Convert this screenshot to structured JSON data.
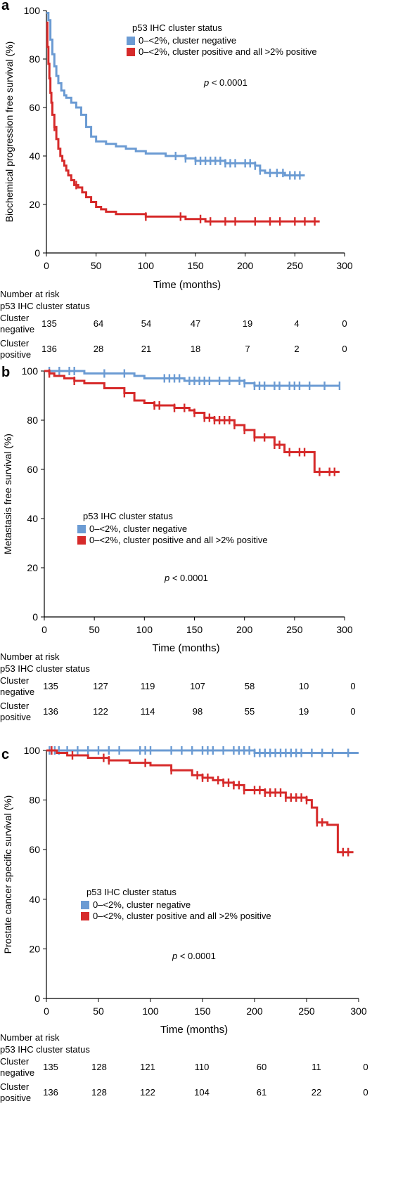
{
  "chart_data": [
    {
      "type": "line",
      "panel_label": "a",
      "ylabel": "Biochemical progression free survival (%)",
      "xlabel": "Time (months)",
      "xlim": [
        0,
        300
      ],
      "ylim": [
        0,
        100
      ],
      "x_ticks": [
        "0",
        "50",
        "100",
        "150",
        "200",
        "250",
        "300"
      ],
      "y_ticks": [
        "0",
        "20",
        "40",
        "60",
        "80",
        "100"
      ],
      "legend_title": "p53 IHC cluster status",
      "legend_placement": "top-right",
      "p_value_prefix": "p",
      "p_value_rest": " < 0.0001",
      "series": [
        {
          "name": "0–<2%, cluster negative",
          "color": "#6b9bd3",
          "x": [
            0,
            2,
            4,
            6,
            8,
            10,
            12,
            15,
            18,
            20,
            25,
            30,
            35,
            40,
            45,
            50,
            60,
            70,
            80,
            90,
            100,
            110,
            120,
            130,
            140,
            150,
            160,
            170,
            180,
            190,
            200,
            210,
            215,
            220,
            230,
            240,
            250,
            260
          ],
          "y": [
            99,
            96,
            88,
            82,
            77,
            73,
            70,
            67,
            65,
            64,
            62,
            60,
            57,
            52,
            48,
            46,
            45,
            44,
            43,
            42,
            41,
            41,
            40,
            40,
            39,
            38,
            38,
            38,
            37,
            37,
            37,
            36,
            34,
            33,
            33,
            32,
            32,
            32
          ],
          "censor_x": [
            130,
            140,
            150,
            155,
            160,
            165,
            170,
            175,
            180,
            185,
            190,
            200,
            205,
            210,
            215,
            225,
            232,
            238,
            245,
            250,
            255
          ]
        },
        {
          "name": "0–<2%, cluster positive and all >2% positive",
          "color": "#d62a2a",
          "x": [
            0,
            1,
            2,
            3,
            4,
            5,
            6,
            8,
            10,
            12,
            14,
            16,
            18,
            20,
            22,
            25,
            28,
            32,
            36,
            40,
            45,
            50,
            55,
            60,
            70,
            80,
            90,
            100,
            110,
            120,
            130,
            140,
            150,
            160,
            170,
            180,
            200,
            220,
            240,
            260,
            275
          ],
          "y": [
            95,
            85,
            78,
            72,
            66,
            62,
            57,
            52,
            47,
            43,
            40,
            38,
            36,
            34,
            32,
            30,
            28,
            27,
            25,
            23,
            21,
            19,
            18,
            17,
            16,
            16,
            16,
            15,
            15,
            15,
            15,
            14,
            14,
            13,
            13,
            13,
            13,
            13,
            13,
            13,
            13
          ],
          "censor_x": [
            8,
            30,
            100,
            135,
            155,
            165,
            180,
            190,
            210,
            225,
            235,
            250,
            260,
            270
          ]
        }
      ],
      "risk_table": {
        "title": "Number at risk",
        "subtitle": "p53 IHC cluster status",
        "times": [
          0,
          50,
          100,
          150,
          200,
          250,
          300
        ],
        "rows": [
          {
            "label_line1": "Cluster",
            "label_line2": "negative",
            "values": [
              "135",
              "64",
              "54",
              "47",
              "19",
              "4",
              "0"
            ]
          },
          {
            "label_line1": "Cluster",
            "label_line2": "positive",
            "values": [
              "136",
              "28",
              "21",
              "18",
              "7",
              "2",
              "0"
            ]
          }
        ]
      }
    },
    {
      "type": "line",
      "panel_label": "b",
      "ylabel": "Metastasis free survival (%)",
      "xlabel": "Time (months)",
      "xlim": [
        0,
        300
      ],
      "ylim": [
        0,
        100
      ],
      "x_ticks": [
        "0",
        "50",
        "100",
        "150",
        "200",
        "250",
        "300"
      ],
      "y_ticks": [
        "0",
        "20",
        "40",
        "60",
        "80",
        "100"
      ],
      "legend_title": "p53 IHC cluster status",
      "legend_placement": "center-left",
      "p_value_prefix": "p",
      "p_value_rest": " < 0.0001",
      "series": [
        {
          "name": "0–<2%, cluster negative",
          "color": "#6b9bd3",
          "x": [
            0,
            10,
            20,
            30,
            40,
            60,
            80,
            90,
            100,
            120,
            140,
            150,
            160,
            170,
            180,
            190,
            200,
            210,
            220,
            240,
            260,
            280,
            295
          ],
          "y": [
            100,
            100,
            100,
            100,
            99,
            99,
            99,
            98,
            97,
            97,
            96,
            96,
            96,
            96,
            96,
            96,
            95,
            94,
            94,
            94,
            94,
            94,
            94
          ],
          "censor_x": [
            5,
            15,
            25,
            30,
            60,
            80,
            120,
            125,
            130,
            135,
            145,
            150,
            155,
            160,
            165,
            175,
            185,
            195,
            200,
            210,
            215,
            220,
            230,
            235,
            245,
            250,
            255,
            265,
            280,
            295
          ]
        },
        {
          "name": "0–<2%, cluster positive and all >2% positive",
          "color": "#d62a2a",
          "x": [
            0,
            5,
            10,
            20,
            30,
            40,
            60,
            80,
            90,
            100,
            110,
            120,
            130,
            140,
            145,
            150,
            160,
            170,
            180,
            190,
            200,
            210,
            220,
            230,
            240,
            260,
            270,
            280,
            295
          ],
          "y": [
            100,
            99,
            98,
            97,
            96,
            95,
            93,
            91,
            88,
            87,
            86,
            86,
            85,
            85,
            84,
            83,
            81,
            80,
            80,
            78,
            76,
            73,
            73,
            70,
            67,
            67,
            59,
            59,
            59
          ],
          "censor_x": [
            5,
            30,
            80,
            110,
            115,
            130,
            140,
            150,
            160,
            165,
            170,
            175,
            180,
            185,
            190,
            200,
            210,
            220,
            230,
            235,
            245,
            255,
            260,
            275,
            285,
            290
          ]
        }
      ],
      "risk_table": {
        "title": "Number at risk",
        "subtitle": "p53 IHC cluster status",
        "times": [
          0,
          50,
          100,
          150,
          200,
          250,
          300
        ],
        "rows": [
          {
            "label_line1": "Cluster",
            "label_line2": "negative",
            "values": [
              "135",
              "127",
              "119",
              "107",
              "58",
              "10",
              "0"
            ]
          },
          {
            "label_line1": "Cluster",
            "label_line2": "positive",
            "values": [
              "136",
              "122",
              "114",
              "98",
              "55",
              "19",
              "0"
            ]
          }
        ]
      }
    },
    {
      "type": "line",
      "panel_label": "c",
      "ylabel": "Prostate cancer specific survival (%)",
      "xlabel": "Time (months)",
      "xlim": [
        0,
        300
      ],
      "ylim": [
        0,
        100
      ],
      "x_ticks": [
        "0",
        "50",
        "100",
        "150",
        "200",
        "250",
        "300"
      ],
      "y_ticks": [
        "0",
        "20",
        "40",
        "60",
        "80",
        "100"
      ],
      "legend_title": "p53 IHC cluster status",
      "legend_placement": "center-left",
      "p_value_prefix": "p",
      "p_value_rest": " < 0.0001",
      "series": [
        {
          "name": "0–<2%, cluster negative",
          "color": "#6b9bd3",
          "x": [
            0,
            50,
            100,
            150,
            200,
            250,
            300
          ],
          "y": [
            100,
            100,
            100,
            100,
            99,
            99,
            99
          ],
          "censor_x": [
            3,
            8,
            12,
            20,
            30,
            40,
            50,
            60,
            70,
            90,
            95,
            100,
            120,
            130,
            140,
            150,
            155,
            160,
            170,
            180,
            185,
            190,
            195,
            200,
            205,
            210,
            215,
            220,
            225,
            230,
            235,
            240,
            245,
            255,
            265,
            275,
            290
          ]
        },
        {
          "name": "0–<2%, cluster positive and all >2% positive",
          "color": "#d62a2a",
          "x": [
            0,
            10,
            20,
            40,
            60,
            80,
            100,
            120,
            140,
            150,
            160,
            170,
            180,
            190,
            200,
            210,
            220,
            230,
            240,
            250,
            255,
            260,
            270,
            278,
            280,
            295
          ],
          "y": [
            100,
            99,
            98,
            97,
            96,
            95,
            94,
            92,
            90,
            89,
            88,
            87,
            86,
            84,
            84,
            83,
            83,
            81,
            81,
            80,
            77,
            71,
            70,
            70,
            59,
            59
          ],
          "censor_x": [
            5,
            25,
            55,
            60,
            95,
            120,
            145,
            150,
            155,
            165,
            170,
            175,
            180,
            185,
            190,
            200,
            205,
            210,
            215,
            220,
            225,
            230,
            235,
            240,
            245,
            250,
            260,
            265,
            285,
            290
          ]
        }
      ],
      "risk_table": {
        "title": "Number at risk",
        "subtitle": "p53 IHC cluster status",
        "times": [
          0,
          50,
          100,
          150,
          200,
          250,
          300
        ],
        "rows": [
          {
            "label_line1": "Cluster",
            "label_line2": "negative",
            "values": [
              "135",
              "128",
              "121",
              "110",
              "60",
              "11",
              "0"
            ]
          },
          {
            "label_line1": "Cluster",
            "label_line2": "positive",
            "values": [
              "136",
              "128",
              "122",
              "104",
              "61",
              "22",
              "0"
            ]
          }
        ]
      }
    }
  ]
}
